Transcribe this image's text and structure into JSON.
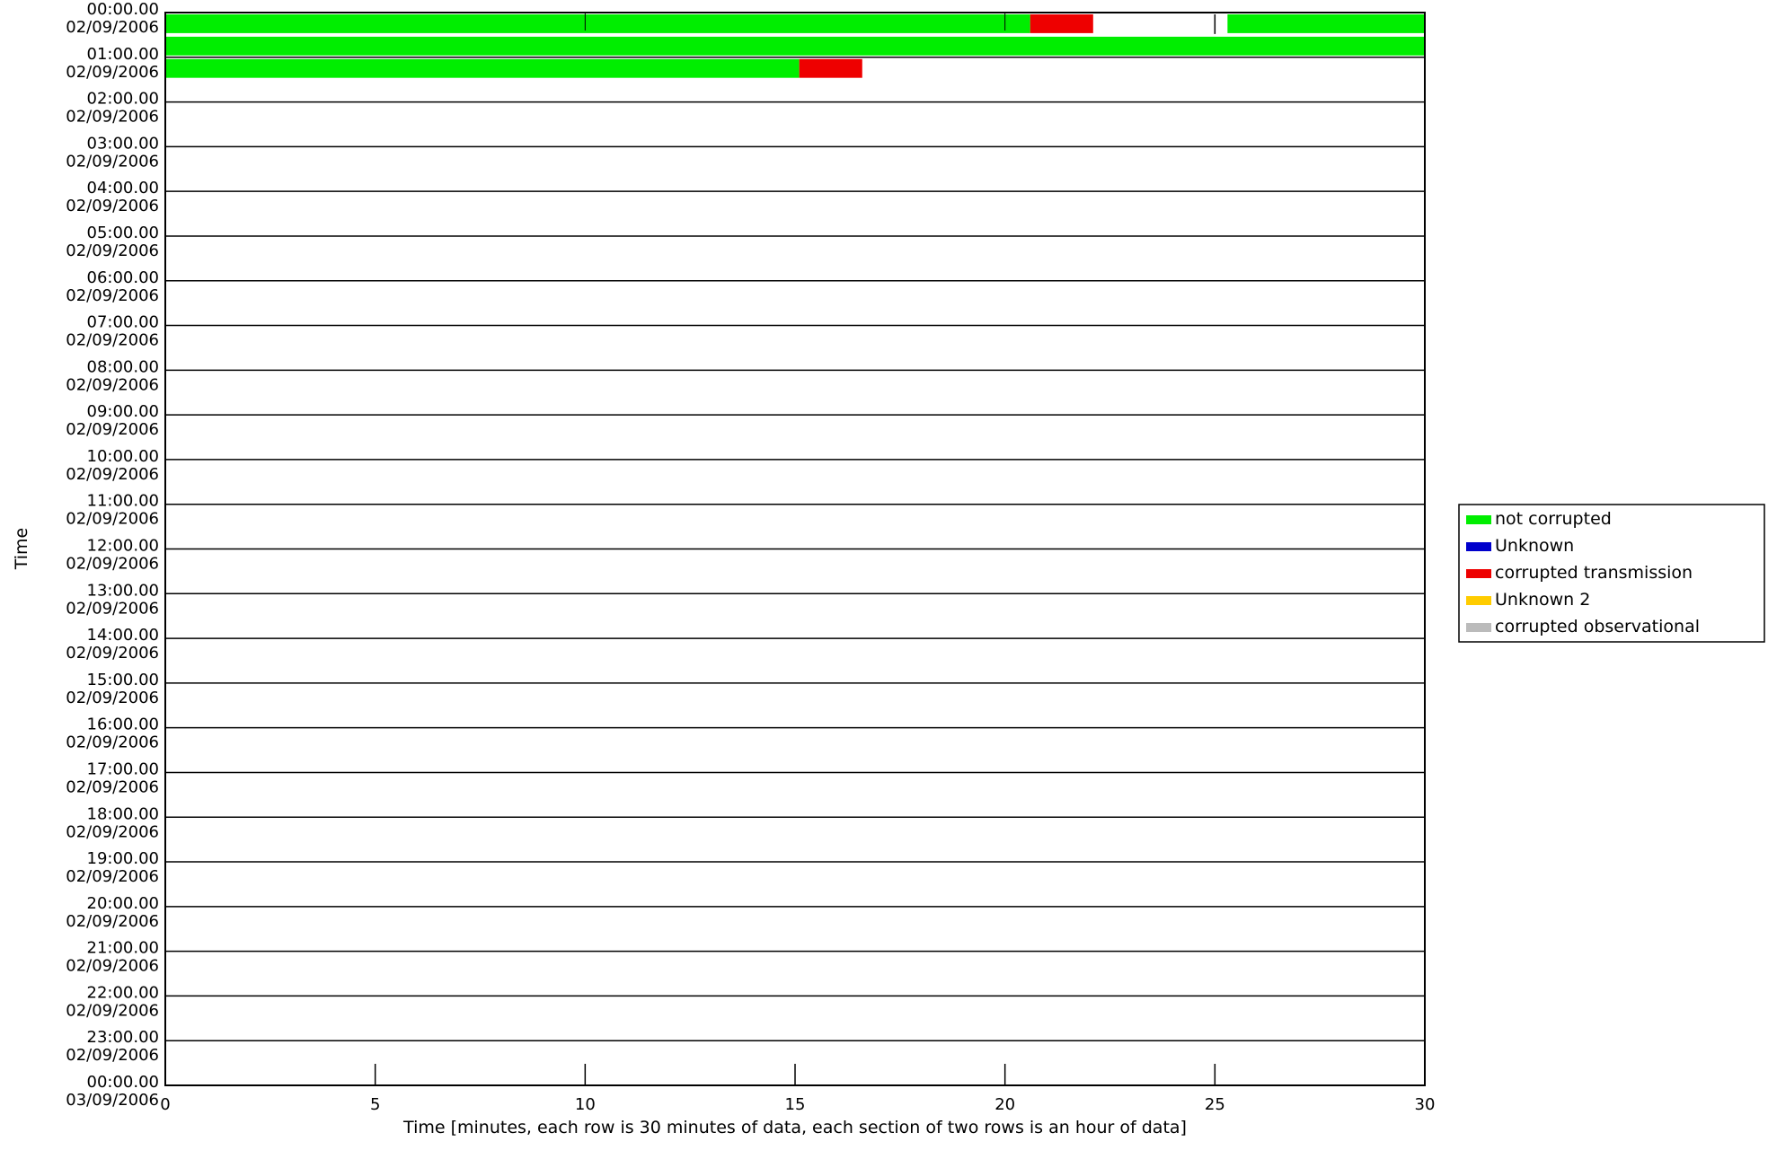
{
  "chart_data": {
    "type": "bar",
    "title": "",
    "xlabel": "Time [minutes, each row is 30 minutes of data, each section of two rows is an hour of data]",
    "ylabel": "Time",
    "xlim": [
      0,
      30
    ],
    "x_ticks": [
      0,
      5,
      10,
      15,
      20,
      25,
      30
    ],
    "grid": false,
    "legend_position": "right",
    "colors": {
      "not corrupted": "#00ee00",
      "Unknown": "#0000cc",
      "corrupted transmission": "#ee0000",
      "Unknown 2": "#ffcc00",
      "corrupted observational": "#bbbbbb"
    },
    "legend": [
      {
        "label": "not corrupted",
        "color": "#00ee00"
      },
      {
        "label": "Unknown",
        "color": "#0000cc"
      },
      {
        "label": "corrupted transmission",
        "color": "#ee0000"
      },
      {
        "label": "Unknown 2",
        "color": "#ffcc00"
      },
      {
        "label": "corrupted observational",
        "color": "#bbbbbb"
      }
    ],
    "y_labels": [
      {
        "time": "00:00.00",
        "date": "02/09/2006"
      },
      {
        "time": "01:00.00",
        "date": "02/09/2006"
      },
      {
        "time": "02:00.00",
        "date": "02/09/2006"
      },
      {
        "time": "03:00.00",
        "date": "02/09/2006"
      },
      {
        "time": "04:00.00",
        "date": "02/09/2006"
      },
      {
        "time": "05:00.00",
        "date": "02/09/2006"
      },
      {
        "time": "06:00.00",
        "date": "02/09/2006"
      },
      {
        "time": "07:00.00",
        "date": "02/09/2006"
      },
      {
        "time": "08:00.00",
        "date": "02/09/2006"
      },
      {
        "time": "09:00.00",
        "date": "02/09/2006"
      },
      {
        "time": "10:00.00",
        "date": "02/09/2006"
      },
      {
        "time": "11:00.00",
        "date": "02/09/2006"
      },
      {
        "time": "12:00.00",
        "date": "02/09/2006"
      },
      {
        "time": "13:00.00",
        "date": "02/09/2006"
      },
      {
        "time": "14:00.00",
        "date": "02/09/2006"
      },
      {
        "time": "15:00.00",
        "date": "02/09/2006"
      },
      {
        "time": "16:00.00",
        "date": "02/09/2006"
      },
      {
        "time": "17:00.00",
        "date": "02/09/2006"
      },
      {
        "time": "18:00.00",
        "date": "02/09/2006"
      },
      {
        "time": "19:00.00",
        "date": "02/09/2006"
      },
      {
        "time": "20:00.00",
        "date": "02/09/2006"
      },
      {
        "time": "21:00.00",
        "date": "02/09/2006"
      },
      {
        "time": "22:00.00",
        "date": "02/09/2006"
      },
      {
        "time": "23:00.00",
        "date": "02/09/2006"
      },
      {
        "time": "00:00.00",
        "date": "03/09/2006"
      }
    ],
    "segments": [
      {
        "row": 0,
        "start": 0,
        "end": 20.6,
        "status": "not corrupted"
      },
      {
        "row": 0,
        "start": 20.6,
        "end": 22.1,
        "status": "corrupted transmission"
      },
      {
        "row": 0,
        "start": 25.3,
        "end": 30,
        "status": "not corrupted"
      },
      {
        "row": 1,
        "start": 0,
        "end": 30,
        "status": "not corrupted"
      },
      {
        "row": 2,
        "start": 0,
        "end": 15.1,
        "status": "not corrupted"
      },
      {
        "row": 2,
        "start": 15.1,
        "end": 16.6,
        "status": "corrupted transmission"
      }
    ],
    "markers": [
      {
        "row": 0,
        "x": 25
      }
    ]
  }
}
